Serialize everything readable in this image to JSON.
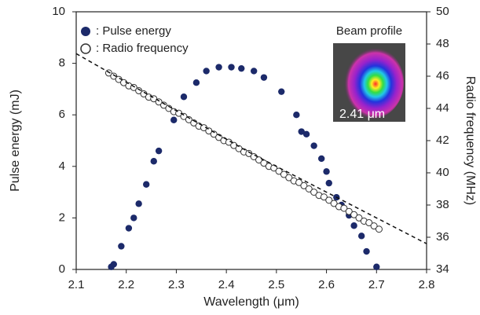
{
  "chart_data": {
    "type": "scatter",
    "x_label": "Wavelength (μm)",
    "y_label": "Pulse energy (mJ)",
    "y2_label": "Radio frequency (MHz)",
    "xlim": [
      2.1,
      2.8
    ],
    "xticks": [
      2.1,
      2.2,
      2.3,
      2.4,
      2.5,
      2.6,
      2.7,
      2.8
    ],
    "ylim": [
      0,
      10
    ],
    "yticks": [
      0,
      2,
      4,
      6,
      8,
      10
    ],
    "y2lim": [
      34,
      50
    ],
    "y2ticks": [
      34,
      36,
      38,
      40,
      42,
      44,
      46,
      48,
      50
    ],
    "legend": "upper left",
    "series": [
      {
        "name": ": Pulse energy",
        "color": "#1c2a6a",
        "hollow": false,
        "x": [
          2.17,
          2.175,
          2.19,
          2.205,
          2.215,
          2.225,
          2.24,
          2.255,
          2.265,
          2.295,
          2.315,
          2.34,
          2.36,
          2.385,
          2.41,
          2.43,
          2.455,
          2.475,
          2.51,
          2.54,
          2.55,
          2.56,
          2.575,
          2.59,
          2.6,
          2.605,
          2.62,
          2.63,
          2.645,
          2.655,
          2.67,
          2.68,
          2.7
        ],
        "values": [
          0.1,
          0.2,
          0.9,
          1.6,
          2.0,
          2.55,
          3.3,
          4.2,
          4.6,
          5.8,
          6.7,
          7.25,
          7.7,
          7.85,
          7.85,
          7.8,
          7.7,
          7.45,
          6.9,
          6.0,
          5.35,
          5.25,
          4.8,
          4.3,
          3.8,
          3.35,
          2.8,
          2.5,
          2.1,
          1.7,
          1.3,
          0.7,
          0.1
        ]
      },
      {
        "name": ": Radio frequency",
        "color": "#333333",
        "hollow": true,
        "axis": "y2",
        "x": [
          2.165,
          2.175,
          2.185,
          2.195,
          2.205,
          2.215,
          2.225,
          2.235,
          2.245,
          2.255,
          2.265,
          2.275,
          2.285,
          2.295,
          2.305,
          2.315,
          2.325,
          2.335,
          2.345,
          2.355,
          2.365,
          2.375,
          2.385,
          2.395,
          2.405,
          2.415,
          2.425,
          2.435,
          2.445,
          2.455,
          2.465,
          2.475,
          2.485,
          2.495,
          2.505,
          2.515,
          2.525,
          2.535,
          2.545,
          2.555,
          2.565,
          2.575,
          2.585,
          2.595,
          2.605,
          2.615,
          2.625,
          2.635,
          2.645,
          2.655,
          2.665,
          2.675,
          2.685,
          2.695,
          2.705
        ],
        "values": [
          46.2,
          46.0,
          45.8,
          45.6,
          45.4,
          45.3,
          45.1,
          44.9,
          44.7,
          44.6,
          44.4,
          44.2,
          44.0,
          43.8,
          43.7,
          43.5,
          43.3,
          43.1,
          42.9,
          42.8,
          42.6,
          42.4,
          42.2,
          42.0,
          41.9,
          41.7,
          41.5,
          41.3,
          41.2,
          41.0,
          40.8,
          40.6,
          40.4,
          40.3,
          40.1,
          39.9,
          39.7,
          39.5,
          39.4,
          39.2,
          39.0,
          38.8,
          38.6,
          38.5,
          38.3,
          38.1,
          37.9,
          37.8,
          37.6,
          37.4,
          37.2,
          37.0,
          36.9,
          36.7,
          36.5
        ]
      },
      {
        "color": "#111111",
        "style": "dashed",
        "axis": "y2",
        "x": [
          2.1,
          2.45,
          2.8
        ],
        "values": [
          47.4,
          41.2,
          35.6
        ]
      }
    ],
    "inset_title": "Beam profile",
    "inset_label": "2.41 μm"
  }
}
